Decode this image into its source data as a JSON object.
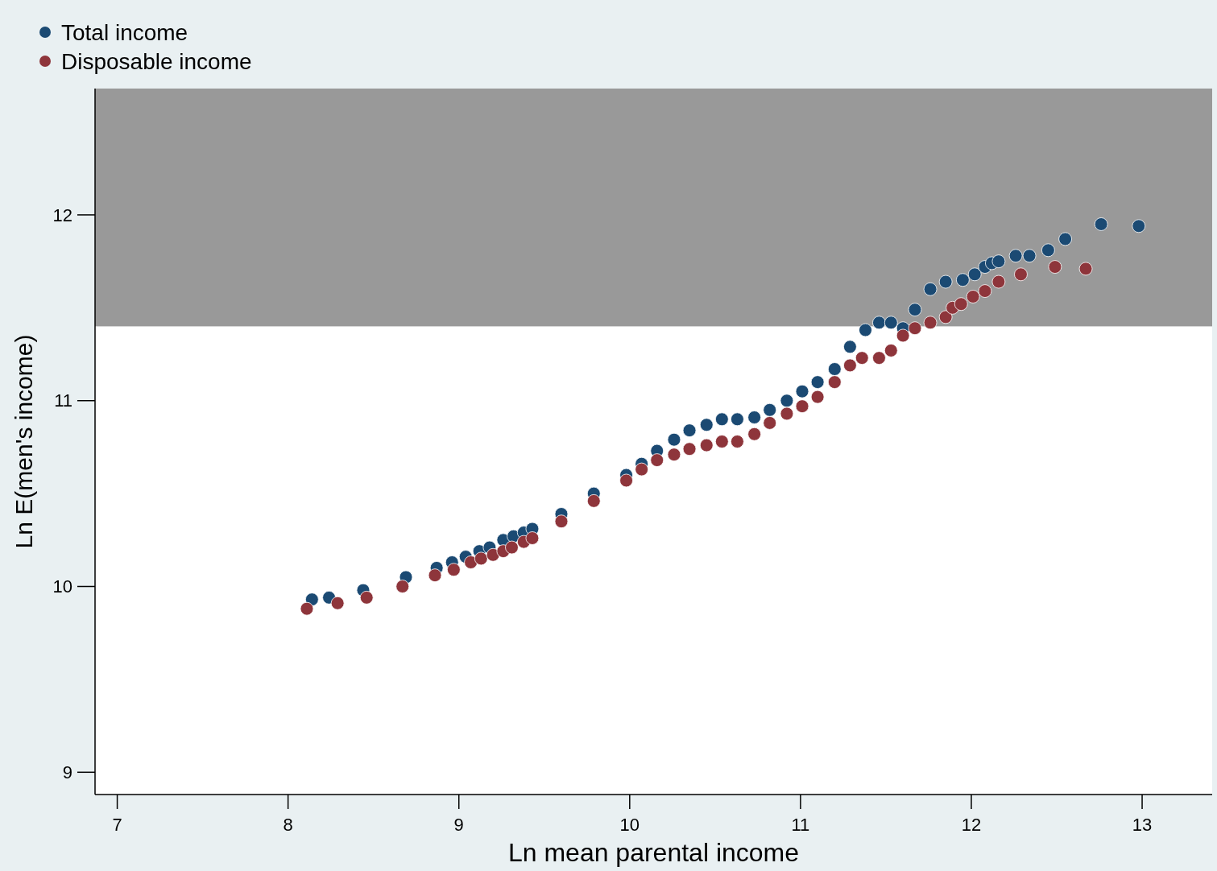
{
  "chart_data": {
    "type": "scatter",
    "xlabel": "Ln mean parental income",
    "ylabel": "Ln E(men's income)",
    "xlim": [
      6.87,
      13.41
    ],
    "ylim": [
      8.88,
      12.68
    ],
    "xticks": [
      7,
      8,
      9,
      10,
      11,
      12,
      13
    ],
    "yticks": [
      9,
      10,
      11,
      12
    ],
    "grid": false,
    "legend": "top left",
    "marker": "circle",
    "bands": [
      {
        "axis": "y",
        "from": 11.4,
        "to": 12.68,
        "color": "#999999"
      }
    ],
    "series": [
      {
        "name": "Total income",
        "color": "#1b4a73",
        "x": [
          8.14,
          8.24,
          8.44,
          8.69,
          8.87,
          8.96,
          9.04,
          9.12,
          9.18,
          9.26,
          9.32,
          9.38,
          9.43,
          9.6,
          9.79,
          9.98,
          10.07,
          10.16,
          10.26,
          10.35,
          10.45,
          10.54,
          10.63,
          10.73,
          10.82,
          10.92,
          11.01,
          11.1,
          11.2,
          11.29,
          11.38,
          11.46,
          11.53,
          11.6,
          11.67,
          11.76,
          11.85,
          11.95,
          12.02,
          12.08,
          12.12,
          12.16,
          12.26,
          12.34,
          12.45,
          12.55,
          12.76,
          12.98
        ],
        "values": [
          9.93,
          9.94,
          9.98,
          10.05,
          10.1,
          10.13,
          10.16,
          10.19,
          10.21,
          10.25,
          10.27,
          10.29,
          10.31,
          10.39,
          10.5,
          10.6,
          10.66,
          10.73,
          10.79,
          10.84,
          10.87,
          10.9,
          10.9,
          10.91,
          10.95,
          11.0,
          11.05,
          11.1,
          11.17,
          11.29,
          11.38,
          11.42,
          11.42,
          11.39,
          11.49,
          11.6,
          11.64,
          11.65,
          11.68,
          11.72,
          11.74,
          11.75,
          11.78,
          11.78,
          11.81,
          11.87,
          11.95,
          11.94
        ]
      },
      {
        "name": "Disposable income",
        "color": "#8e353b",
        "x": [
          8.11,
          8.29,
          8.46,
          8.67,
          8.86,
          8.97,
          9.07,
          9.13,
          9.2,
          9.26,
          9.31,
          9.38,
          9.43,
          9.6,
          9.79,
          9.98,
          10.07,
          10.16,
          10.26,
          10.35,
          10.45,
          10.54,
          10.63,
          10.73,
          10.82,
          10.92,
          11.01,
          11.1,
          11.2,
          11.29,
          11.36,
          11.46,
          11.53,
          11.6,
          11.67,
          11.76,
          11.85,
          11.89,
          11.94,
          12.01,
          12.08,
          12.16,
          12.29,
          12.49,
          12.67
        ],
        "values": [
          9.88,
          9.91,
          9.94,
          10.0,
          10.06,
          10.09,
          10.13,
          10.15,
          10.17,
          10.19,
          10.21,
          10.24,
          10.26,
          10.35,
          10.46,
          10.57,
          10.63,
          10.68,
          10.71,
          10.74,
          10.76,
          10.78,
          10.78,
          10.82,
          10.88,
          10.93,
          10.97,
          11.02,
          11.1,
          11.19,
          11.23,
          11.23,
          11.27,
          11.35,
          11.39,
          11.42,
          11.45,
          11.5,
          11.52,
          11.56,
          11.59,
          11.64,
          11.68,
          11.72,
          11.71
        ]
      }
    ]
  }
}
